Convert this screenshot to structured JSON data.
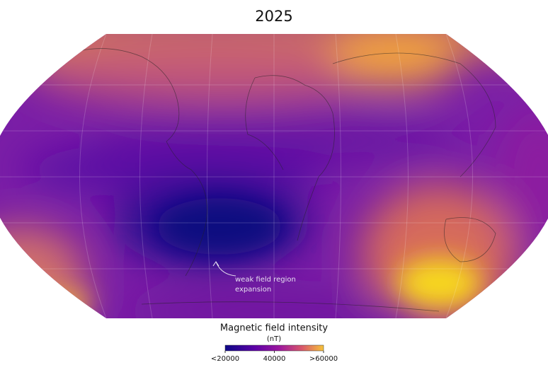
{
  "title": "2025",
  "annotation": [
    "weak field region",
    "expansion"
  ],
  "colorbar": {
    "title": "Magnetic field intensity",
    "unit": "(nT)",
    "range": [
      20000,
      60000
    ],
    "ticks": [
      {
        "value": 20000,
        "label": "<20000"
      },
      40000,
      {
        "value": 60000,
        "label": ">60000"
      }
    ]
  }
}
